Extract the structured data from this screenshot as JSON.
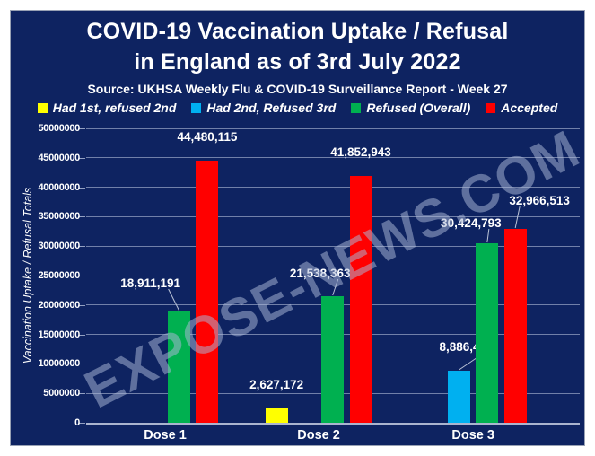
{
  "header": {
    "title_line1": "COVID-19 Vaccination Uptake / Refusal",
    "title_line2": "in England as of 3rd July 2022",
    "source": "Source: UKHSA Weekly Flu & COVID-19 Surveillance Report - Week 27"
  },
  "watermark": "EXPOSE-NEWS.COM",
  "colors": {
    "panel_background": "#0e2361",
    "outer_background": "#ffffff",
    "text": "#ffffff",
    "gridline": "#93a0c2",
    "yellow": "#ffff00",
    "blue": "#00b0f0",
    "green": "#00b050",
    "red": "#ff0000"
  },
  "chart_data": {
    "type": "bar",
    "title": "COVID-19 Vaccination Uptake / Refusal in England as of 3rd July 2022",
    "subtitle": "Source: UKHSA Weekly Flu & COVID-19 Surveillance Report - Week 27",
    "categories": [
      "Dose 1",
      "Dose 2",
      "Dose 3"
    ],
    "series": [
      {
        "name": "Had 1st, refused 2nd",
        "color": "#ffff00",
        "values": [
          null,
          2627172,
          null
        ]
      },
      {
        "name": "Had 2nd, Refused 3rd",
        "color": "#00b0f0",
        "values": [
          null,
          null,
          8886430
        ]
      },
      {
        "name": "Refused (Overall)",
        "color": "#00b050",
        "values": [
          18911191,
          21538363,
          30424793
        ]
      },
      {
        "name": "Accepted",
        "color": "#ff0000",
        "values": [
          44480115,
          41852943,
          32966513
        ]
      }
    ],
    "data_labels": [
      {
        "category": "Dose 1",
        "series": "Refused (Overall)",
        "text": "18,911,191"
      },
      {
        "category": "Dose 1",
        "series": "Accepted",
        "text": "44,480,115"
      },
      {
        "category": "Dose 2",
        "series": "Had 1st, refused 2nd",
        "text": "2,627,172"
      },
      {
        "category": "Dose 2",
        "series": "Refused (Overall)",
        "text": "21,538,363"
      },
      {
        "category": "Dose 2",
        "series": "Accepted",
        "text": "41,852,943"
      },
      {
        "category": "Dose 3",
        "series": "Had 2nd, Refused 3rd",
        "text": "8,886,430"
      },
      {
        "category": "Dose 3",
        "series": "Refused (Overall)",
        "text": "30,424,793"
      },
      {
        "category": "Dose 3",
        "series": "Accepted",
        "text": "32,966,513"
      }
    ],
    "xlabel": "",
    "ylabel": "Vaccination Uptake / Refusal Totals",
    "ylim": [
      0,
      50000000
    ],
    "ytick_step": 5000000,
    "yticks": [
      "0",
      "5000000",
      "10000000",
      "15000000",
      "20000000",
      "25000000",
      "30000000",
      "35000000",
      "40000000",
      "45000000",
      "50000000"
    ],
    "grid": true,
    "legend_position": "top"
  }
}
